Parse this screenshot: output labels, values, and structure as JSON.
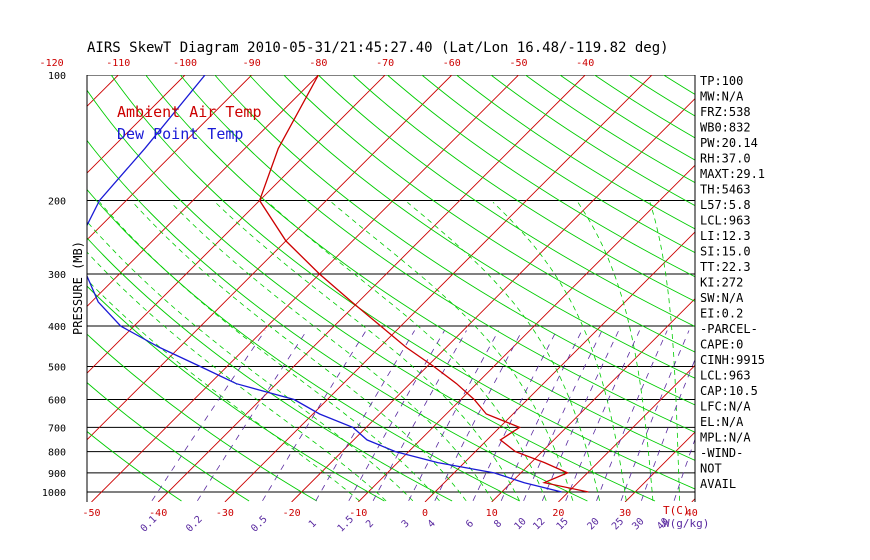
{
  "chart_data": {
    "type": "line",
    "title": "AIRS SkewT Diagram 2010-05-31/21:45:27.40 (Lat/Lon 16.48/-119.82 deg)",
    "ylabel": "PRESSURE (MB)",
    "xlabel": "T(C)",
    "mixing_ratio_unit": "W(g/kg)",
    "pressure_ticks": [
      100,
      200,
      300,
      400,
      500,
      600,
      700,
      800,
      900,
      1000
    ],
    "top_temp_ticks": [
      "-120",
      "-110",
      "-100",
      "-90",
      "-80",
      "-70",
      "-60",
      "-50",
      "-40"
    ],
    "bottom_temp_ticks": [
      "-50",
      "-40",
      "-30",
      "-20",
      "-10",
      "0",
      "10",
      "20",
      "30",
      "40"
    ],
    "mixing_ratio_labels": [
      "0.1",
      "0.2",
      "0.5",
      "1",
      "1.5",
      "2",
      "3",
      "4",
      "6",
      "8",
      "10",
      "12",
      "15",
      "20",
      "25",
      "30",
      "40"
    ],
    "legend": [
      {
        "label": "Ambient Air Temp",
        "color": "#cc0000"
      },
      {
        "label": "Dew Point Temp",
        "color": "#1a1ad6"
      }
    ],
    "series": [
      {
        "name": "Ambient Air Temp",
        "points": [
          [
            100,
            -80
          ],
          [
            150,
            -75
          ],
          [
            200,
            -70
          ],
          [
            250,
            -60
          ],
          [
            300,
            -50
          ],
          [
            350,
            -41
          ],
          [
            400,
            -33
          ],
          [
            450,
            -26
          ],
          [
            500,
            -19
          ],
          [
            550,
            -13
          ],
          [
            600,
            -8
          ],
          [
            650,
            -4
          ],
          [
            700,
            3
          ],
          [
            750,
            2
          ],
          [
            800,
            6
          ],
          [
            850,
            12
          ],
          [
            900,
            17
          ],
          [
            950,
            15
          ],
          [
            1000,
            23
          ]
        ]
      },
      {
        "name": "Dew Point Temp",
        "points": [
          [
            100,
            -97
          ],
          [
            150,
            -95
          ],
          [
            200,
            -94
          ],
          [
            250,
            -91
          ],
          [
            300,
            -85
          ],
          [
            350,
            -79
          ],
          [
            400,
            -72
          ],
          [
            450,
            -63
          ],
          [
            500,
            -54
          ],
          [
            550,
            -46
          ],
          [
            600,
            -35
          ],
          [
            650,
            -29
          ],
          [
            700,
            -22
          ],
          [
            750,
            -18
          ],
          [
            800,
            -12
          ],
          [
            850,
            -4
          ],
          [
            900,
            6
          ],
          [
            950,
            12
          ],
          [
            1000,
            19
          ]
        ]
      }
    ]
  },
  "stats": [
    "TP:100",
    "MW:N/A",
    "FRZ:538",
    "WB0:832",
    "PW:20.14",
    "RH:37.0",
    "MAXT:29.1",
    "TH:5463",
    "L57:5.8",
    "LCL:963",
    "LI:12.3",
    "SI:15.0",
    "TT:22.3",
    "KI:272",
    "SW:N/A",
    "EI:0.2",
    "-PARCEL-",
    "CAPE:0",
    "CINH:9915",
    "LCL:963",
    "CAP:10.5",
    "LFC:N/A",
    "EL:N/A",
    "MPL:N/A",
    "-WIND-",
    "NOT",
    "AVAIL"
  ],
  "colors": {
    "temp": "#cc0000",
    "dew": "#1a1ad6",
    "isotherm": "#cc0000",
    "dry_adiabat": "#00cc00",
    "moist_adiabat": "#00cc00",
    "mixing_ratio": "#5a2aa0",
    "isobar": "#000000"
  }
}
